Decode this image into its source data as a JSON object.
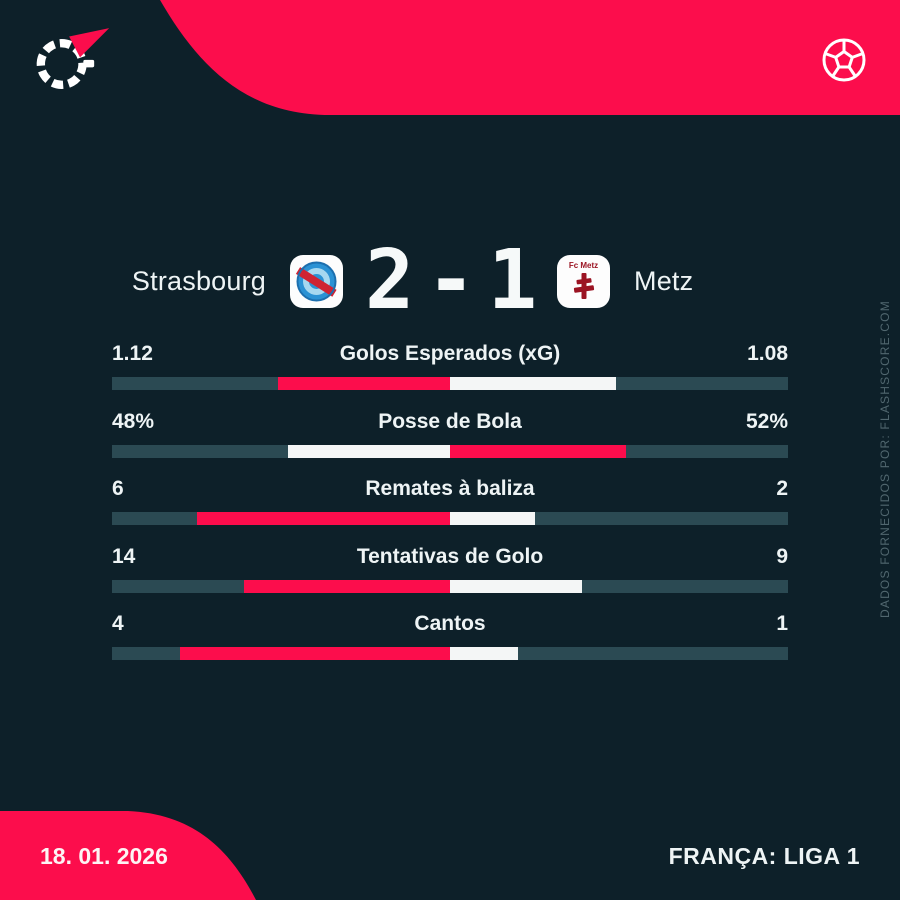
{
  "header": {
    "icons": {
      "brand": "flashscore-logo",
      "top_right": "soccer-ball-icon"
    }
  },
  "match": {
    "home_team": "Strasbourg",
    "away_team": "Metz",
    "home_score": "2",
    "separator": "-",
    "away_score": "1",
    "away_crest_text": "Fc Metz"
  },
  "stats": [
    {
      "label": "Golos Esperados (xG)",
      "home": "1.12",
      "away": "1.08",
      "home_val": 1.12,
      "away_val": 1.08,
      "winner": "home"
    },
    {
      "label": "Posse de Bola",
      "home": "48%",
      "away": "52%",
      "home_val": 48,
      "away_val": 52,
      "winner": "away"
    },
    {
      "label": "Remates à baliza",
      "home": "6",
      "away": "2",
      "home_val": 6,
      "away_val": 2,
      "winner": "home"
    },
    {
      "label": "Tentativas de Golo",
      "home": "14",
      "away": "9",
      "home_val": 14,
      "away_val": 9,
      "winner": "home"
    },
    {
      "label": "Cantos",
      "home": "4",
      "away": "1",
      "home_val": 4,
      "away_val": 1,
      "winner": "home"
    }
  ],
  "footer": {
    "date": "18. 01. 2026",
    "league": "FRANÇA: LIGA 1"
  },
  "watermark": "DADOS FORNECIDOS POR: FLASHSCORE.COM",
  "colors": {
    "background": "#0d2029",
    "accent_red": "#fc0d4c",
    "bar_track": "#2b4a53",
    "bar_white": "#f4f6f6",
    "watermark_text": "#51676f"
  },
  "chart_data": {
    "type": "bar",
    "title": "Strasbourg 2-1 Metz — estatísticas do jogo",
    "categories": [
      "Golos Esperados (xG)",
      "Posse de Bola",
      "Remates à baliza",
      "Tentativas de Golo",
      "Cantos"
    ],
    "series": [
      {
        "name": "Strasbourg",
        "values": [
          1.12,
          48,
          6,
          14,
          4
        ]
      },
      {
        "name": "Metz",
        "values": [
          1.08,
          52,
          2,
          9,
          1
        ]
      }
    ],
    "legend_position": "none",
    "grid": false,
    "layout": "paired horizontal bars from center; red segment marks the leading team, white the trailing team"
  }
}
